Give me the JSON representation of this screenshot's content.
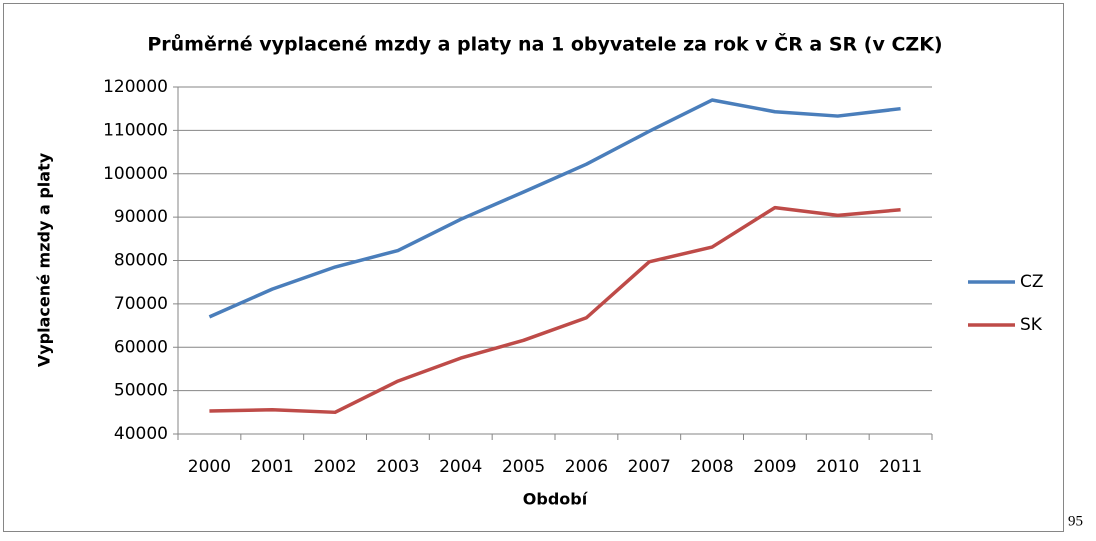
{
  "chart_data": {
    "type": "line",
    "title": "Průměrné vyplacené mzdy a platy na 1 obyvatele za rok v ČR a SR (v CZK)",
    "x_label": "Období",
    "y_label": "Vyplacené mzdy a platy",
    "categories": [
      "2000",
      "2001",
      "2002",
      "2003",
      "2004",
      "2005",
      "2006",
      "2007",
      "2008",
      "2009",
      "2010",
      "2011"
    ],
    "series": [
      {
        "name": "CZ",
        "color": "#4a7ebb",
        "values": [
          67000,
          73400,
          78500,
          82300,
          89500,
          95800,
          102200,
          109800,
          117000,
          114300,
          113300,
          115000
        ]
      },
      {
        "name": "SK",
        "color": "#be4b48",
        "values": [
          45300,
          45600,
          45000,
          52200,
          57500,
          61600,
          66800,
          79700,
          83100,
          92200,
          90400,
          91700
        ]
      }
    ],
    "ylim": [
      40000,
      120000
    ],
    "yticks": [
      40000,
      50000,
      60000,
      70000,
      80000,
      90000,
      100000,
      110000,
      120000
    ],
    "grid": true,
    "legend": "right"
  },
  "page_number": "95"
}
